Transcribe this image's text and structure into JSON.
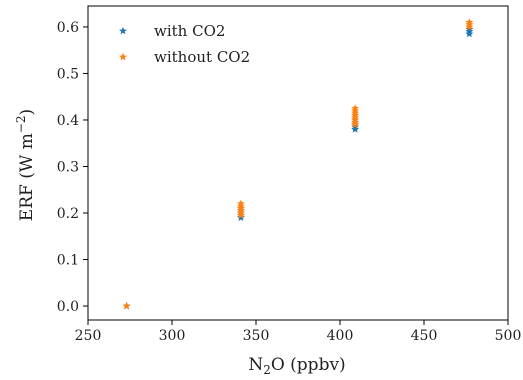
{
  "chart_data": {
    "type": "scatter",
    "title": "",
    "xlabel": {
      "main": "N",
      "sub": "2",
      "rest": "O (ppbv)"
    },
    "ylabel": {
      "main": "ERF (W m",
      "sup": "−2",
      "rest": ")"
    },
    "xlim": [
      250,
      500
    ],
    "ylim": [
      -0.03,
      0.645
    ],
    "xticks": [
      250,
      300,
      350,
      400,
      450,
      500
    ],
    "xtick_labels": [
      "250",
      "300",
      "350",
      "400",
      "450",
      "500"
    ],
    "yticks": [
      0.0,
      0.1,
      0.2,
      0.3,
      0.4,
      0.5,
      0.6
    ],
    "ytick_labels": [
      "0.0",
      "0.1",
      "0.2",
      "0.3",
      "0.4",
      "0.5",
      "0.6"
    ],
    "grid": false,
    "legend_placement": "top-left",
    "marker": "star",
    "series": [
      {
        "name": "with CO2",
        "color": "#1f77b4",
        "points": [
          {
            "x": 273,
            "y": 0.0
          },
          {
            "x": 341,
            "y": 0.19
          },
          {
            "x": 341,
            "y": 0.195
          },
          {
            "x": 341,
            "y": 0.2
          },
          {
            "x": 341,
            "y": 0.205
          },
          {
            "x": 341,
            "y": 0.21
          },
          {
            "x": 409,
            "y": 0.38
          },
          {
            "x": 409,
            "y": 0.385
          },
          {
            "x": 409,
            "y": 0.39
          },
          {
            "x": 409,
            "y": 0.395
          },
          {
            "x": 409,
            "y": 0.4
          },
          {
            "x": 477,
            "y": 0.585
          },
          {
            "x": 477,
            "y": 0.59
          },
          {
            "x": 477,
            "y": 0.595
          }
        ]
      },
      {
        "name": "without CO2",
        "color": "#ff7f0e",
        "points": [
          {
            "x": 273,
            "y": 0.0
          },
          {
            "x": 341,
            "y": 0.195
          },
          {
            "x": 341,
            "y": 0.2
          },
          {
            "x": 341,
            "y": 0.205
          },
          {
            "x": 341,
            "y": 0.21
          },
          {
            "x": 341,
            "y": 0.215
          },
          {
            "x": 341,
            "y": 0.22
          },
          {
            "x": 409,
            "y": 0.39
          },
          {
            "x": 409,
            "y": 0.395
          },
          {
            "x": 409,
            "y": 0.4
          },
          {
            "x": 409,
            "y": 0.405
          },
          {
            "x": 409,
            "y": 0.41
          },
          {
            "x": 409,
            "y": 0.415
          },
          {
            "x": 409,
            "y": 0.42
          },
          {
            "x": 409,
            "y": 0.425
          },
          {
            "x": 477,
            "y": 0.6
          },
          {
            "x": 477,
            "y": 0.605
          },
          {
            "x": 477,
            "y": 0.61
          }
        ]
      }
    ]
  }
}
